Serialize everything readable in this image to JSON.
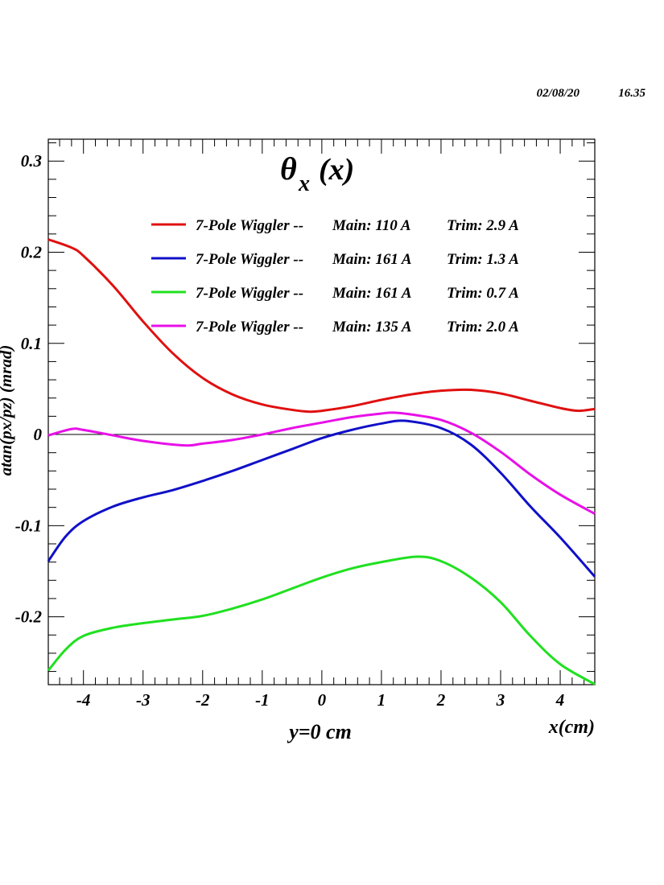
{
  "timestamp": {
    "date": "02/08/20",
    "time": "16.35"
  },
  "chart_data": {
    "type": "line",
    "title": "θx (x)",
    "title_main": "θ",
    "title_sub": "x",
    "title_suffix": "(x)",
    "xlabel": "x(cm)",
    "ylabel": "atan(px/pz) (mrad)",
    "annotation": "y=0 cm",
    "xlim": [
      -4.59,
      4.58
    ],
    "ylim": [
      -0.2745,
      0.324
    ],
    "xticks": [
      -4,
      -3,
      -2,
      -1,
      0,
      1,
      2,
      3,
      4
    ],
    "xtick_labels": [
      "-4",
      "-3",
      "-2",
      "-1",
      "0",
      "1",
      "2",
      "3",
      "4"
    ],
    "yticks": [
      -0.2,
      -0.1,
      0,
      0.1,
      0.2,
      0.3
    ],
    "ytick_labels": [
      "-0.2",
      "-0.1",
      "0",
      "0.1",
      "0.2",
      "0.3"
    ],
    "x_minor_step": 0.2,
    "y_minor_step": 0.02,
    "zero_line": true,
    "grid": false,
    "legend_position": "top-center",
    "series": [
      {
        "name": "7-Pole Wiggler --  Main: 110 A    Trim: 2.9 A",
        "label_device": "7-Pole Wiggler --",
        "label_main": "Main: 110 A",
        "label_trim": "Trim: 2.9 A",
        "color": "#e01010",
        "x": [
          -4.59,
          -4.2,
          -4.0,
          -3.5,
          -3.0,
          -2.5,
          -2.0,
          -1.5,
          -1.0,
          -0.5,
          -0.2,
          0.0,
          0.5,
          1.0,
          1.5,
          2.0,
          2.5,
          3.0,
          3.5,
          4.0,
          4.3,
          4.58
        ],
        "y": [
          0.214,
          0.205,
          0.196,
          0.163,
          0.124,
          0.089,
          0.062,
          0.044,
          0.033,
          0.027,
          0.025,
          0.026,
          0.031,
          0.038,
          0.044,
          0.048,
          0.049,
          0.045,
          0.037,
          0.029,
          0.026,
          0.028
        ]
      },
      {
        "name": "7-Pole Wiggler --  Main: 161 A    Trim: 1.3 A",
        "label_device": "7-Pole Wiggler --",
        "label_main": "Main: 161 A",
        "label_trim": "Trim: 1.3 A",
        "color": "#1010c8",
        "x": [
          -4.59,
          -4.3,
          -4.0,
          -3.5,
          -3.0,
          -2.5,
          -2.0,
          -1.5,
          -1.0,
          -0.5,
          0.0,
          0.5,
          1.0,
          1.4,
          2.0,
          2.5,
          3.0,
          3.5,
          4.0,
          4.58
        ],
        "y": [
          -0.139,
          -0.112,
          -0.095,
          -0.079,
          -0.069,
          -0.061,
          -0.051,
          -0.04,
          -0.028,
          -0.016,
          -0.004,
          0.005,
          0.012,
          0.015,
          0.007,
          -0.011,
          -0.042,
          -0.079,
          -0.113,
          -0.156
        ]
      },
      {
        "name": "7-Pole Wiggler --  Main: 161 A    Trim: 0.7 A",
        "label_device": "7-Pole Wiggler --",
        "label_main": "Main: 161 A",
        "label_trim": "Trim: 0.7 A",
        "color": "#20e020",
        "x": [
          -4.59,
          -4.3,
          -4.0,
          -3.5,
          -3.0,
          -2.5,
          -2.0,
          -1.5,
          -1.0,
          -0.5,
          0.0,
          0.5,
          1.0,
          1.6,
          2.0,
          2.5,
          3.0,
          3.5,
          4.0,
          4.58
        ],
        "y": [
          -0.259,
          -0.236,
          -0.221,
          -0.212,
          -0.207,
          -0.203,
          -0.199,
          -0.191,
          -0.181,
          -0.169,
          -0.157,
          -0.147,
          -0.14,
          -0.134,
          -0.139,
          -0.157,
          -0.184,
          -0.221,
          -0.252,
          -0.274
        ]
      },
      {
        "name": "7-Pole Wiggler --  Main: 135 A    Trim: 2.0 A",
        "label_device": "7-Pole Wiggler --",
        "label_main": "Main: 135 A",
        "label_trim": "Trim: 2.0 A",
        "color": "#e810e8",
        "x": [
          -4.59,
          -4.2,
          -4.0,
          -3.5,
          -3.0,
          -2.3,
          -2.0,
          -1.5,
          -1.0,
          -0.5,
          0.0,
          0.5,
          1.0,
          1.2,
          1.5,
          2.0,
          2.5,
          3.0,
          3.5,
          4.0,
          4.58
        ],
        "y": [
          -0.001,
          0.006,
          0.005,
          -0.001,
          -0.007,
          -0.012,
          -0.01,
          -0.006,
          0.0,
          0.007,
          0.013,
          0.019,
          0.023,
          0.024,
          0.022,
          0.016,
          0.002,
          -0.019,
          -0.044,
          -0.066,
          -0.087
        ]
      }
    ]
  }
}
